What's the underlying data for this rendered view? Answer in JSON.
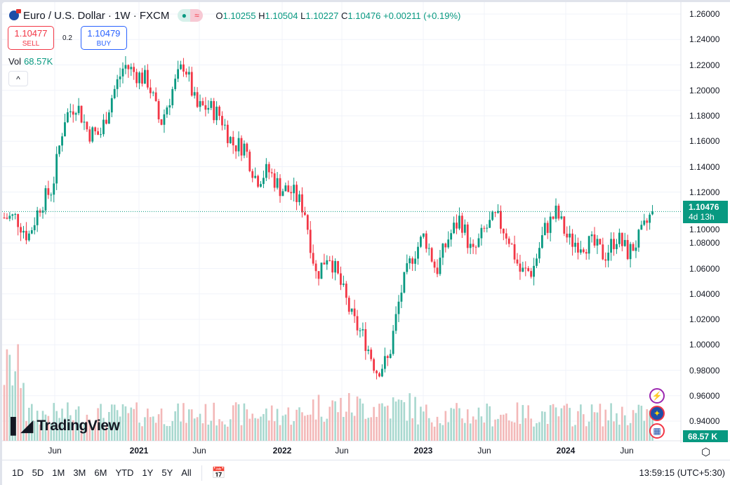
{
  "header": {
    "title": "Euro / U.S. Dollar · 1W · FXCM",
    "status_open": "●",
    "status_delay": "≈",
    "ohlc": {
      "o_label": "O",
      "o": "1.10255",
      "h_label": "H",
      "h": "1.10504",
      "l_label": "L",
      "l": "1.10227",
      "c_label": "C",
      "c": "1.10476",
      "change": "+0.00211 (+0.19%)"
    }
  },
  "trade": {
    "sell_price": "1.10477",
    "sell_label": "SELL",
    "spread": "0.2",
    "buy_price": "1.10479",
    "buy_label": "BUY"
  },
  "volume": {
    "label": "Vol",
    "value": "68.57K",
    "tag": "68.57 K"
  },
  "collapse_icon": "^",
  "logo": "TradingView",
  "price_tag": {
    "price": "1.10476",
    "countdown": "4d 13h"
  },
  "colors": {
    "up": "#089981",
    "down": "#f23645",
    "vol_up": "#a8d8cf",
    "vol_down": "#f3b8b8"
  },
  "chart_data": {
    "type": "candlestick",
    "title": "Euro / U.S. Dollar · 1W · FXCM",
    "y_ticks": [
      "1.26000",
      "1.24000",
      "1.22000",
      "1.20000",
      "1.18000",
      "1.16000",
      "1.14000",
      "1.12000",
      "1.10000",
      "1.08000",
      "1.06000",
      "1.04000",
      "1.02000",
      "1.00000",
      "0.98000",
      "0.96000",
      "0.94000"
    ],
    "ylim": [
      0.928,
      1.262
    ],
    "x_ticks": [
      "Jun",
      "2021",
      "Jun",
      "2022",
      "Jun",
      "2023",
      "Jun",
      "2024",
      "Jun"
    ],
    "x_range": [
      "2020-02",
      "2024-08"
    ],
    "monthly_close_approx": [
      1.1,
      1.1,
      1.085,
      1.11,
      1.123,
      1.178,
      1.19,
      1.167,
      1.165,
      1.196,
      1.22,
      1.213,
      1.207,
      1.173,
      1.2,
      1.222,
      1.186,
      1.187,
      1.18,
      1.158,
      1.156,
      1.13,
      1.137,
      1.123,
      1.12,
      1.107,
      1.054,
      1.073,
      1.048,
      1.02,
      1.005,
      0.98,
      0.988,
      1.04,
      1.07,
      1.086,
      1.058,
      1.084,
      1.1,
      1.07,
      1.09,
      1.1,
      1.085,
      1.057,
      1.058,
      1.09,
      1.104,
      1.082,
      1.08,
      1.079,
      1.07,
      1.085,
      1.072,
      1.085,
      1.1048
    ],
    "last_price": 1.10476
  },
  "time_axis": {
    "ticks": [
      "Jun",
      "2021",
      "Jun",
      "2022",
      "Jun",
      "2023",
      "Jun",
      "2024",
      "Jun"
    ]
  },
  "toolbar": {
    "ranges": [
      "1D",
      "5D",
      "1M",
      "3M",
      "6M",
      "YTD",
      "1Y",
      "5Y",
      "All"
    ],
    "clock": "13:59:15 (UTC+5:30)"
  }
}
